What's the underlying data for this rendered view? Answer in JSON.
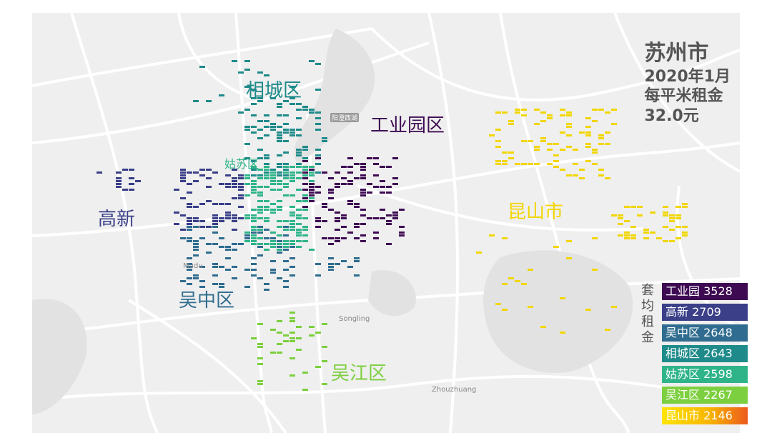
{
  "title": {
    "city": "苏州市",
    "date": "2020年1月",
    "metric": "每平米租金",
    "value": "32.0元"
  },
  "districts": [
    {
      "name": "相城区",
      "color": "#1f8a8a"
    },
    {
      "name": "工业园区",
      "color": "#3e0b53"
    },
    {
      "name": "姑苏区",
      "color": "#2fb48a"
    },
    {
      "name": "高新",
      "color": "#3a3f88"
    },
    {
      "name": "昆山市",
      "color": "#f2d600"
    },
    {
      "name": "吴中区",
      "color": "#2f6c8f"
    },
    {
      "name": "吴江区",
      "color": "#7ccf3e"
    }
  ],
  "places": {
    "mudu": "Mudu",
    "songling": "Songling",
    "zhouzhuang": "Zhouzhuang",
    "road": "阳澄西湖"
  },
  "legend": {
    "title": "套均租金",
    "items": [
      {
        "label": "工业园 3528",
        "color": "#3e0b53"
      },
      {
        "label": "高新 2709",
        "color": "#3a3f88"
      },
      {
        "label": "吴中区 2648",
        "color": "#2f6c8f"
      },
      {
        "label": "相城区 2643",
        "color": "#1f8a8a"
      },
      {
        "label": "姑苏区 2598",
        "color": "#2fb48a"
      },
      {
        "label": "吴江区 2267",
        "color": "#7ccf3e"
      },
      {
        "label": "昆山市 2146",
        "gradient": "linear-gradient(90deg,#ffe400 0%,#f7b500 55%,#ec5a1e 100%)"
      }
    ]
  }
}
